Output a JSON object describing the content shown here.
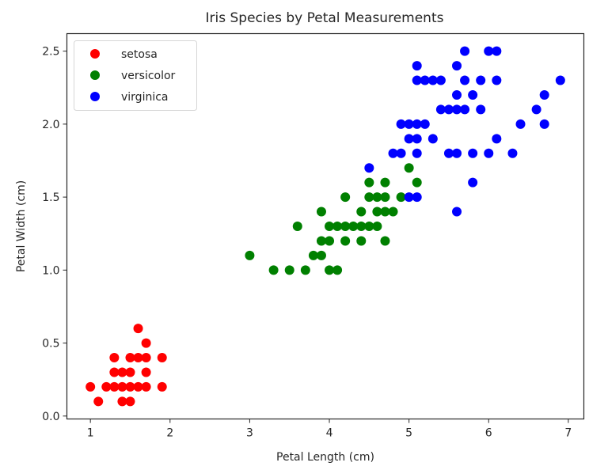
{
  "chart_data": {
    "type": "scatter",
    "title": "Iris Species by Petal Measurements",
    "xlabel": "Petal Length (cm)",
    "ylabel": "Petal Width (cm)",
    "xlim": [
      0.705,
      7.195
    ],
    "ylim": [
      -0.02,
      2.62
    ],
    "xticks": [
      1,
      2,
      3,
      4,
      5,
      6,
      7
    ],
    "xtick_labels": [
      "1",
      "2",
      "3",
      "4",
      "5",
      "6",
      "7"
    ],
    "yticks": [
      0.0,
      0.5,
      1.0,
      1.5,
      2.0,
      2.5
    ],
    "ytick_labels": [
      "0.0",
      "0.5",
      "1.0",
      "1.5",
      "2.0",
      "2.5"
    ],
    "grid": false,
    "legend_position": "upper left",
    "series": [
      {
        "name": "setosa",
        "color": "#ff0000",
        "points": [
          [
            1.6,
            0.6
          ],
          [
            1.7,
            0.5
          ],
          [
            1.3,
            0.4
          ],
          [
            1.5,
            0.4
          ],
          [
            1.6,
            0.4
          ],
          [
            1.7,
            0.4
          ],
          [
            1.9,
            0.4
          ],
          [
            1.3,
            0.3
          ],
          [
            1.4,
            0.3
          ],
          [
            1.5,
            0.3
          ],
          [
            1.7,
            0.3
          ],
          [
            1.0,
            0.2
          ],
          [
            1.2,
            0.2
          ],
          [
            1.3,
            0.2
          ],
          [
            1.4,
            0.2
          ],
          [
            1.5,
            0.2
          ],
          [
            1.6,
            0.2
          ],
          [
            1.7,
            0.2
          ],
          [
            1.9,
            0.2
          ],
          [
            1.1,
            0.1
          ],
          [
            1.4,
            0.1
          ],
          [
            1.5,
            0.1
          ]
        ]
      },
      {
        "name": "versicolor",
        "color": "#008000",
        "points": [
          [
            5.0,
            1.7
          ],
          [
            4.5,
            1.6
          ],
          [
            4.7,
            1.6
          ],
          [
            5.1,
            1.6
          ],
          [
            4.2,
            1.5
          ],
          [
            4.5,
            1.5
          ],
          [
            4.6,
            1.5
          ],
          [
            4.7,
            1.5
          ],
          [
            4.9,
            1.5
          ],
          [
            3.9,
            1.4
          ],
          [
            4.4,
            1.4
          ],
          [
            4.6,
            1.4
          ],
          [
            4.7,
            1.4
          ],
          [
            4.8,
            1.4
          ],
          [
            3.6,
            1.3
          ],
          [
            4.0,
            1.3
          ],
          [
            4.1,
            1.3
          ],
          [
            4.2,
            1.3
          ],
          [
            4.3,
            1.3
          ],
          [
            4.4,
            1.3
          ],
          [
            4.5,
            1.3
          ],
          [
            4.6,
            1.3
          ],
          [
            3.9,
            1.2
          ],
          [
            4.0,
            1.2
          ],
          [
            4.2,
            1.2
          ],
          [
            4.4,
            1.2
          ],
          [
            4.7,
            1.2
          ],
          [
            3.0,
            1.1
          ],
          [
            3.8,
            1.1
          ],
          [
            3.9,
            1.1
          ],
          [
            3.3,
            1.0
          ],
          [
            3.5,
            1.0
          ],
          [
            3.7,
            1.0
          ],
          [
            4.0,
            1.0
          ],
          [
            4.1,
            1.0
          ]
        ]
      },
      {
        "name": "virginica",
        "color": "#0000ff",
        "points": [
          [
            5.7,
            2.5
          ],
          [
            6.0,
            2.5
          ],
          [
            6.1,
            2.5
          ],
          [
            5.1,
            2.4
          ],
          [
            5.6,
            2.4
          ],
          [
            5.1,
            2.3
          ],
          [
            5.2,
            2.3
          ],
          [
            5.3,
            2.3
          ],
          [
            5.4,
            2.3
          ],
          [
            5.7,
            2.3
          ],
          [
            5.9,
            2.3
          ],
          [
            6.1,
            2.3
          ],
          [
            6.9,
            2.3
          ],
          [
            5.6,
            2.2
          ],
          [
            5.8,
            2.2
          ],
          [
            6.7,
            2.2
          ],
          [
            5.4,
            2.1
          ],
          [
            5.5,
            2.1
          ],
          [
            5.6,
            2.1
          ],
          [
            5.7,
            2.1
          ],
          [
            5.9,
            2.1
          ],
          [
            6.6,
            2.1
          ],
          [
            4.9,
            2.0
          ],
          [
            5.0,
            2.0
          ],
          [
            5.1,
            2.0
          ],
          [
            5.2,
            2.0
          ],
          [
            6.4,
            2.0
          ],
          [
            6.7,
            2.0
          ],
          [
            5.0,
            1.9
          ],
          [
            5.1,
            1.9
          ],
          [
            5.3,
            1.9
          ],
          [
            6.1,
            1.9
          ],
          [
            4.8,
            1.8
          ],
          [
            4.9,
            1.8
          ],
          [
            5.1,
            1.8
          ],
          [
            5.5,
            1.8
          ],
          [
            5.6,
            1.8
          ],
          [
            5.8,
            1.8
          ],
          [
            6.0,
            1.8
          ],
          [
            6.3,
            1.8
          ],
          [
            4.5,
            1.7
          ],
          [
            5.8,
            1.6
          ],
          [
            5.0,
            1.5
          ],
          [
            5.1,
            1.5
          ],
          [
            5.6,
            1.4
          ]
        ]
      }
    ]
  },
  "legend": {
    "items": [
      {
        "label": "setosa",
        "color": "#ff0000"
      },
      {
        "label": "versicolor",
        "color": "#008000"
      },
      {
        "label": "virginica",
        "color": "#0000ff"
      }
    ]
  }
}
